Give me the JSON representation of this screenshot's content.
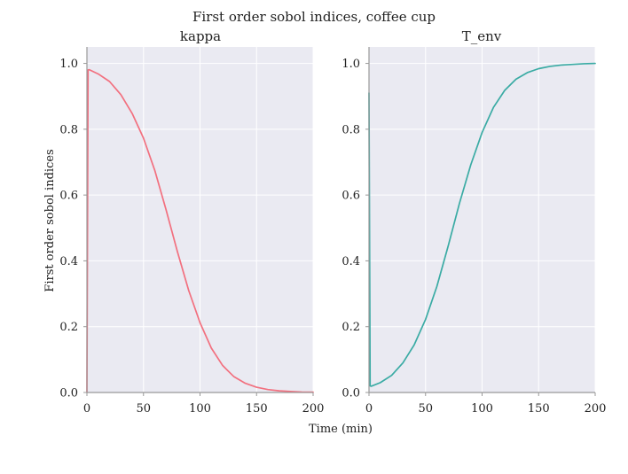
{
  "figure": {
    "title": "First order sobol indices, coffee cup",
    "xlabel": "Time (min)",
    "ylabel": "First order sobol indices"
  },
  "colors": {
    "plot_background": "#EAEAF2",
    "grid": "#FFFFFF",
    "axis_line": "#999999",
    "kappa": "#F2707F",
    "T_env": "#3AABA4"
  },
  "chart_data": [
    {
      "type": "line",
      "title": "kappa",
      "xlim": [
        0,
        200
      ],
      "ylim": [
        0,
        1.05
      ],
      "xticks": [
        0,
        50,
        100,
        150,
        200
      ],
      "yticks": [
        0.0,
        0.2,
        0.4,
        0.6,
        0.8,
        1.0
      ],
      "xtick_labels": [
        "0",
        "50",
        "100",
        "150",
        "200"
      ],
      "ytick_labels": [
        "0.0",
        "0.2",
        "0.4",
        "0.6",
        "0.8",
        "1.0"
      ],
      "grid": true,
      "series": [
        {
          "color": "#F2707F",
          "x": [
            0,
            1,
            2,
            10,
            20,
            30,
            40,
            50,
            60,
            70,
            80,
            90,
            100,
            110,
            120,
            130,
            140,
            150,
            160,
            170,
            180,
            190,
            200
          ],
          "y": [
            0.0,
            0.98,
            0.981,
            0.968,
            0.945,
            0.905,
            0.848,
            0.773,
            0.675,
            0.555,
            0.428,
            0.31,
            0.212,
            0.135,
            0.082,
            0.048,
            0.028,
            0.016,
            0.009,
            0.005,
            0.003,
            0.0015,
            0.001
          ]
        }
      ]
    },
    {
      "type": "line",
      "title": "T_env",
      "xlim": [
        0,
        200
      ],
      "ylim": [
        0,
        1.05
      ],
      "xticks": [
        0,
        50,
        100,
        150,
        200
      ],
      "yticks": [
        0.0,
        0.2,
        0.4,
        0.6,
        0.8,
        1.0
      ],
      "xtick_labels": [
        "0",
        "50",
        "100",
        "150",
        "200"
      ],
      "ytick_labels": [
        "0.0",
        "0.2",
        "0.4",
        "0.6",
        "0.8",
        "1.0"
      ],
      "grid": true,
      "series": [
        {
          "color": "#3AABA4",
          "x": [
            0,
            1,
            2,
            10,
            20,
            30,
            40,
            50,
            60,
            70,
            80,
            90,
            100,
            110,
            120,
            130,
            140,
            150,
            160,
            170,
            180,
            190,
            200
          ],
          "y": [
            0.91,
            0.02,
            0.019,
            0.03,
            0.052,
            0.09,
            0.145,
            0.222,
            0.322,
            0.445,
            0.575,
            0.692,
            0.79,
            0.866,
            0.918,
            0.952,
            0.972,
            0.984,
            0.991,
            0.995,
            0.997,
            0.999,
            1.0
          ]
        }
      ]
    }
  ]
}
